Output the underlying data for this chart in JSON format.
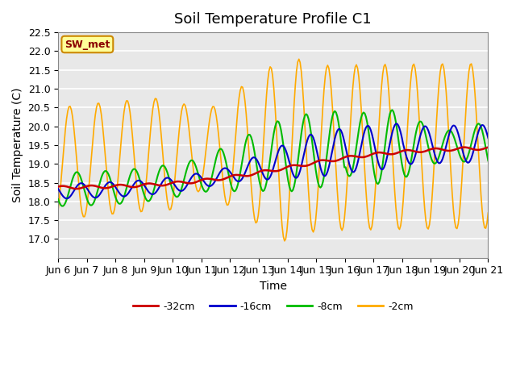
{
  "title": "Soil Temperature Profile C1",
  "xlabel": "Time",
  "ylabel": "Soil Temperature (C)",
  "ylim": [
    16.5,
    22.5
  ],
  "xlim": [
    0,
    15
  ],
  "xtick_labels": [
    "Jun 6",
    "Jun 7",
    "Jun 8",
    "Jun 9",
    "Jun 10",
    "Jun 11",
    "Jun 12",
    "Jun 13",
    "Jun 14",
    "Jun 15",
    "Jun 16",
    "Jun 17",
    "Jun 18",
    "Jun 19",
    "Jun 20",
    "Jun 21"
  ],
  "ytick_vals": [
    17.0,
    17.5,
    18.0,
    18.5,
    19.0,
    19.5,
    20.0,
    20.5,
    21.0,
    21.5,
    22.0,
    22.5
  ],
  "legend_label": "SW_met",
  "bg_color": "#e8e8e8",
  "grid_color": "white",
  "title_fontsize": 13,
  "axis_fontsize": 10,
  "tick_fontsize": 9,
  "legend_colors": [
    "#cc0000",
    "#0000cc",
    "#00bb00",
    "#ffaa00"
  ],
  "legend_labels": [
    "-32cm",
    "-16cm",
    "-8cm",
    "-2cm"
  ]
}
